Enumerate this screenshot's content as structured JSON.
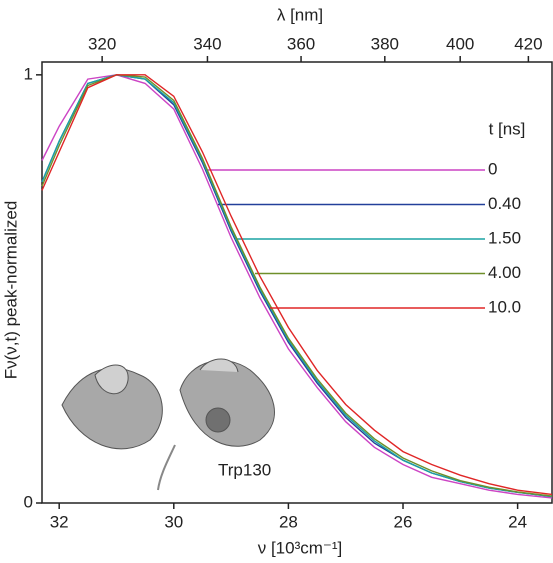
{
  "chart_data": {
    "type": "line",
    "xlabel": "ν  [10³cm⁻¹]",
    "ylabel": "Fν(ν,t)  peak-normalized",
    "x2label": "λ  [nm]",
    "x": [
      32.3,
      32,
      31.5,
      31,
      30.5,
      30,
      29.5,
      29,
      28.5,
      28,
      27.5,
      27,
      26.5,
      26,
      25.5,
      25,
      24.5,
      24,
      23.4
    ],
    "xlim": [
      32.3,
      23.4
    ],
    "xticks": [
      32,
      30,
      28,
      26,
      24
    ],
    "ylim": [
      0,
      1.03
    ],
    "yticks": [
      0,
      1
    ],
    "x2lim": [
      309.6,
      427.4
    ],
    "x2_scale": "reciprocal",
    "x2ticks": [
      320,
      340,
      360,
      380,
      400,
      420
    ],
    "legend_title": "t  [ns]",
    "series": [
      {
        "name": "0",
        "color": "#cc44c4",
        "values": [
          0.8,
          0.88,
          0.99,
          1.0,
          0.98,
          0.92,
          0.78,
          0.62,
          0.48,
          0.36,
          0.27,
          0.19,
          0.13,
          0.09,
          0.06,
          0.045,
          0.03,
          0.02,
          0.012
        ]
      },
      {
        "name": "0.40",
        "color": "#23409a",
        "values": [
          0.75,
          0.845,
          0.98,
          1.0,
          0.99,
          0.93,
          0.795,
          0.635,
          0.495,
          0.375,
          0.28,
          0.2,
          0.14,
          0.1,
          0.07,
          0.05,
          0.035,
          0.025,
          0.015
        ]
      },
      {
        "name": "1.50",
        "color": "#1aa3a3",
        "values": [
          0.75,
          0.845,
          0.98,
          1.0,
          0.99,
          0.935,
          0.8,
          0.64,
          0.5,
          0.38,
          0.285,
          0.205,
          0.145,
          0.1,
          0.07,
          0.05,
          0.035,
          0.025,
          0.015
        ]
      },
      {
        "name": "4.00",
        "color": "#6f8f2a",
        "values": [
          0.74,
          0.835,
          0.975,
          1.0,
          0.995,
          0.94,
          0.805,
          0.645,
          0.505,
          0.385,
          0.29,
          0.21,
          0.15,
          0.105,
          0.075,
          0.052,
          0.037,
          0.026,
          0.016
        ]
      },
      {
        "name": "10.0",
        "color": "#e02626",
        "values": [
          0.73,
          0.82,
          0.97,
          1.0,
          1.0,
          0.95,
          0.82,
          0.67,
          0.53,
          0.41,
          0.31,
          0.23,
          0.17,
          0.12,
          0.09,
          0.065,
          0.045,
          0.03,
          0.02
        ]
      }
    ],
    "annotation": "Trp130"
  }
}
